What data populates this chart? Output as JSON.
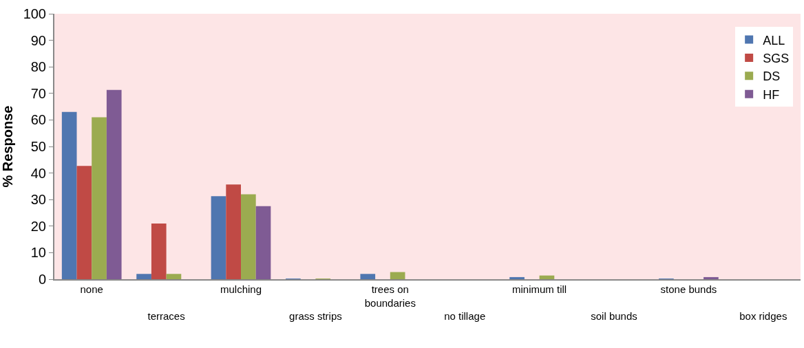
{
  "chart_data": {
    "type": "bar",
    "ylabel": "% Response",
    "categories": [
      "none",
      "terraces",
      "mulching",
      "grass strips",
      "trees on boundaries",
      "no tillage",
      "minimum till",
      "soil bunds",
      "stone bunds",
      "box ridges"
    ],
    "series": [
      {
        "name": "ALL",
        "color": "#4f76b0",
        "values": [
          63,
          2,
          31.3,
          0.2,
          2,
          0,
          0.8,
          0,
          0.2,
          0
        ]
      },
      {
        "name": "SGS",
        "color": "#c04a45",
        "values": [
          42.7,
          21,
          35.7,
          0,
          0,
          0,
          0,
          0,
          0,
          0
        ]
      },
      {
        "name": "DS",
        "color": "#9bab50",
        "values": [
          61,
          2,
          32,
          0.2,
          2.7,
          0,
          1.4,
          0,
          0,
          0
        ]
      },
      {
        "name": "HF",
        "color": "#7f5b94",
        "values": [
          71.3,
          0,
          27.5,
          0,
          0,
          0,
          0,
          0,
          0.8,
          0
        ]
      }
    ],
    "ylim": [
      0,
      100
    ],
    "yticks": [
      0,
      10,
      20,
      30,
      40,
      50,
      60,
      70,
      80,
      90,
      100
    ],
    "grid": false,
    "legend": "top right"
  }
}
